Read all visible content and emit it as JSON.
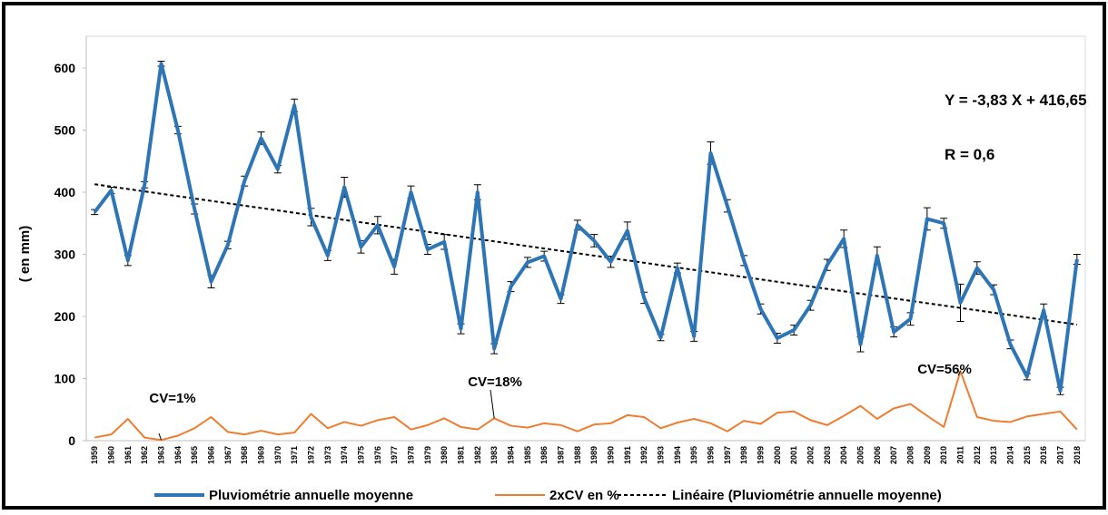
{
  "chart_data": {
    "type": "line",
    "ylabel": "( en mm)",
    "categories": [
      "1959",
      "1960",
      "1961",
      "1962",
      "1963",
      "1964",
      "1965",
      "1966",
      "1967",
      "1968",
      "1969",
      "1970",
      "1971",
      "1972",
      "1973",
      "1974",
      "1975",
      "1976",
      "1977",
      "1978",
      "1979",
      "1980",
      "1981",
      "1982",
      "1983",
      "1984",
      "1985",
      "1986",
      "1987",
      "1988",
      "1989",
      "1990",
      "1991",
      "1992",
      "1993",
      "1994",
      "1995",
      "1996",
      "1997",
      "1998",
      "1999",
      "2000",
      "2001",
      "2002",
      "2003",
      "2004",
      "2005",
      "2006",
      "2007",
      "2008",
      "2009",
      "2010",
      "2011",
      "2012",
      "2013",
      "2014",
      "2015",
      "2016",
      "2017",
      "2018"
    ],
    "series": [
      {
        "name": "Pluviométrie annuelle moyenne",
        "color": "#2e75b6",
        "values": [
          368,
          403,
          290,
          412,
          607,
          500,
          373,
          256,
          315,
          418,
          487,
          437,
          540,
          360,
          298,
          408,
          312,
          347,
          280,
          400,
          308,
          320,
          180,
          400,
          148,
          248,
          287,
          297,
          228,
          347,
          322,
          288,
          338,
          230,
          166,
          278,
          168,
          463,
          378,
          290,
          212,
          165,
          178,
          218,
          283,
          325,
          155,
          298,
          175,
          196,
          357,
          350,
          222,
          278,
          243,
          155,
          103,
          210,
          80,
          292
        ],
        "errors": [
          4,
          5,
          8,
          5,
          4,
          6,
          8,
          10,
          6,
          8,
          10,
          6,
          10,
          14,
          8,
          16,
          10,
          14,
          12,
          10,
          8,
          12,
          8,
          12,
          8,
          8,
          8,
          8,
          7,
          8,
          10,
          9,
          14,
          9,
          5,
          8,
          8,
          18,
          10,
          8,
          8,
          8,
          8,
          8,
          9,
          14,
          12,
          14,
          8,
          10,
          18,
          8,
          30,
          10,
          8,
          7,
          5,
          10,
          6,
          8
        ]
      },
      {
        "name": "2xCV en %",
        "color": "#ed7d31",
        "values": [
          5,
          10,
          35,
          5,
          1,
          8,
          20,
          38,
          14,
          10,
          16,
          10,
          13,
          43,
          20,
          30,
          24,
          33,
          38,
          18,
          25,
          36,
          22,
          18,
          36,
          24,
          21,
          28,
          25,
          15,
          26,
          28,
          41,
          38,
          20,
          29,
          35,
          28,
          15,
          32,
          27,
          45,
          47,
          33,
          25,
          40,
          56,
          35,
          52,
          59,
          40,
          22,
          112,
          38,
          32,
          30,
          39,
          43,
          47,
          18
        ]
      }
    ],
    "trend": {
      "name": "Linéaire (Pluviométrie annuelle moyenne)",
      "slope": -3.83,
      "intercept": 416.65,
      "color": "#000000"
    },
    "annotations": [
      "Y = -3,83 X + 416,65",
      "R = 0,6",
      "CV=1%",
      "CV=18%",
      "CV=56%"
    ],
    "ylim": [
      0,
      600
    ],
    "yticks": [
      0,
      100,
      200,
      300,
      400,
      500,
      600
    ],
    "grid": false
  }
}
